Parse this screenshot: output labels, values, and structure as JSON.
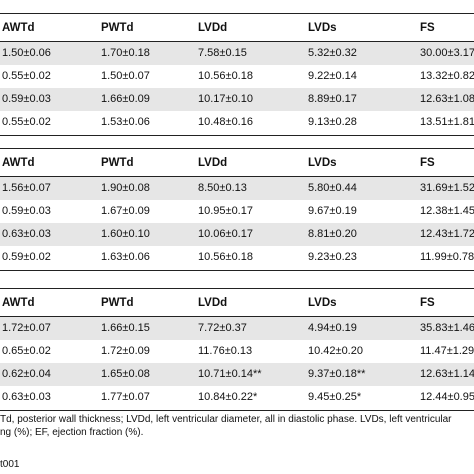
{
  "tables": [
    {
      "headers": [
        "AWTd",
        "PWTd",
        "LVDd",
        "LVDs",
        "FS"
      ],
      "rows": [
        [
          "1.50±0.06",
          "1.70±0.18",
          "7.58±0.15",
          "5.32±0.32",
          "30.00±3.17"
        ],
        [
          "0.55±0.02",
          "1.50±0.07",
          "10.56±0.18",
          "9.22±0.14",
          "13.32±0.82"
        ],
        [
          "0.59±0.03",
          "1.66±0.09",
          "10.17±0.10",
          "8.89±0.17",
          "12.63±1.08"
        ],
        [
          "0.55±0.02",
          "1.53±0.06",
          "10.48±0.16",
          "9.13±0.28",
          "13.51±1.81"
        ]
      ]
    },
    {
      "headers": [
        "AWTd",
        "PWTd",
        "LVDd",
        "LVDs",
        "FS"
      ],
      "rows": [
        [
          "1.56±0.07",
          "1.90±0.08",
          "8.50±0.13",
          "5.80±0.44",
          "31.69±1.52"
        ],
        [
          "0.59±0.03",
          "1.67±0.09",
          "10.95±0.17",
          "9.67±0.19",
          "12.38±1.45"
        ],
        [
          "0.63±0.03",
          "1.60±0.10",
          "10.06±0.17",
          "8.81±0.20",
          "12.43±1.72"
        ],
        [
          "0.59±0.02",
          "1.63±0.06",
          "10.56±0.18",
          "9.23±0.23",
          "11.99±0.78"
        ]
      ]
    },
    {
      "headers": [
        "AWTd",
        "PWTd",
        "LVDd",
        "LVDs",
        "FS"
      ],
      "rows": [
        [
          "1.72±0.07",
          "1.66±0.15",
          "7.72±0.37",
          "4.94±0.19",
          "35.83±1.46"
        ],
        [
          "0.65±0.02",
          "1.72±0.09",
          "11.76±0.13",
          "10.42±0.20",
          "11.47±1.29"
        ],
        [
          "0.62±0.04",
          "1.65±0.08",
          "10.71±0.14**",
          "9.37±0.18**",
          "12.63±1.14"
        ],
        [
          "0.63±0.03",
          "1.77±0.07",
          "10.84±0.22*",
          "9.45±0.25*",
          "12.44±0.95"
        ]
      ]
    }
  ],
  "footnote": {
    "line1": "Td, posterior wall thickness; LVDd, left ventricular diameter, all in diastolic phase. LVDs, left ventricular",
    "line2": "ng (%); EF, ejection fraction (%).",
    "ref": "t001"
  }
}
